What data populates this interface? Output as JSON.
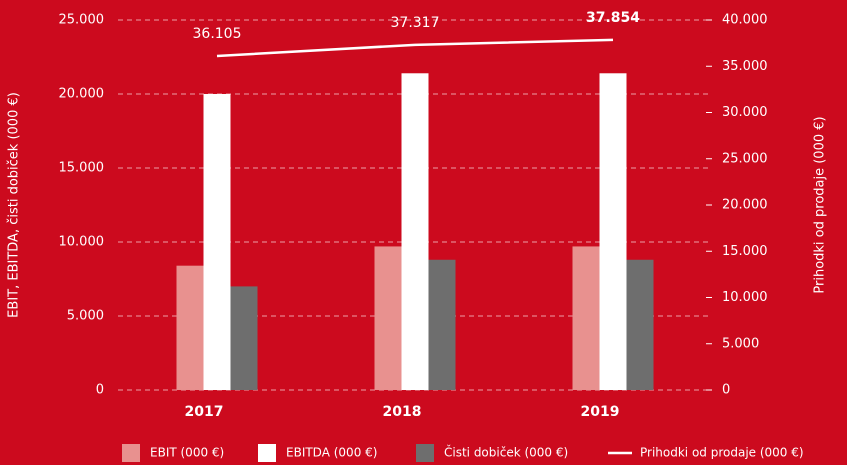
{
  "chart_data": {
    "type": "bar",
    "categories": [
      "2017",
      "2018",
      "2019"
    ],
    "y_label": "EBIT, EBITDA, čisti dobiček (000 €)",
    "y2_label": "Prihodki od prodaje (000 €)",
    "ylim": [
      0,
      25000
    ],
    "yticks": [
      0,
      {
        "value": 5000,
        "label": "5.000"
      },
      {
        "value": 10000,
        "label": "10.000"
      },
      {
        "value": 15000,
        "label": "15.000"
      },
      {
        "value": 20000,
        "label": "20.000"
      },
      {
        "value": 25000,
        "label": "25.000"
      }
    ],
    "y2lim": [
      0,
      40000
    ],
    "y2ticks": [
      0,
      {
        "value": 5000,
        "label": "5.000"
      },
      {
        "value": 10000,
        "label": "10.000"
      },
      {
        "value": 15000,
        "label": "15.000"
      },
      {
        "value": 20000,
        "label": "20.000"
      },
      {
        "value": 25000,
        "label": "25.000"
      },
      {
        "value": 30000,
        "label": "30.000"
      },
      {
        "value": 35000,
        "label": "35.000"
      },
      {
        "value": 40000,
        "label": "40.000"
      }
    ],
    "grid": true,
    "series": [
      {
        "name": "EBIT (000 €)",
        "type": "bar",
        "color": "#e8918f",
        "values": [
          8400,
          9700,
          9700
        ]
      },
      {
        "name": "EBITDA (000 €)",
        "type": "bar",
        "color": "#ffffff",
        "values": [
          20000,
          21400,
          21400
        ]
      },
      {
        "name": "Čisti dobiček (000 €)",
        "type": "bar",
        "color": "#6e6e6e",
        "values": [
          7000,
          8800,
          8800
        ]
      },
      {
        "name": "Prihodki od prodaje (000 €)",
        "type": "line",
        "axis": "y2",
        "color": "#ffffff",
        "values": [
          36105,
          37317,
          37854
        ],
        "value_labels": [
          "36.105",
          "37.317",
          "37.854"
        ]
      }
    ]
  }
}
